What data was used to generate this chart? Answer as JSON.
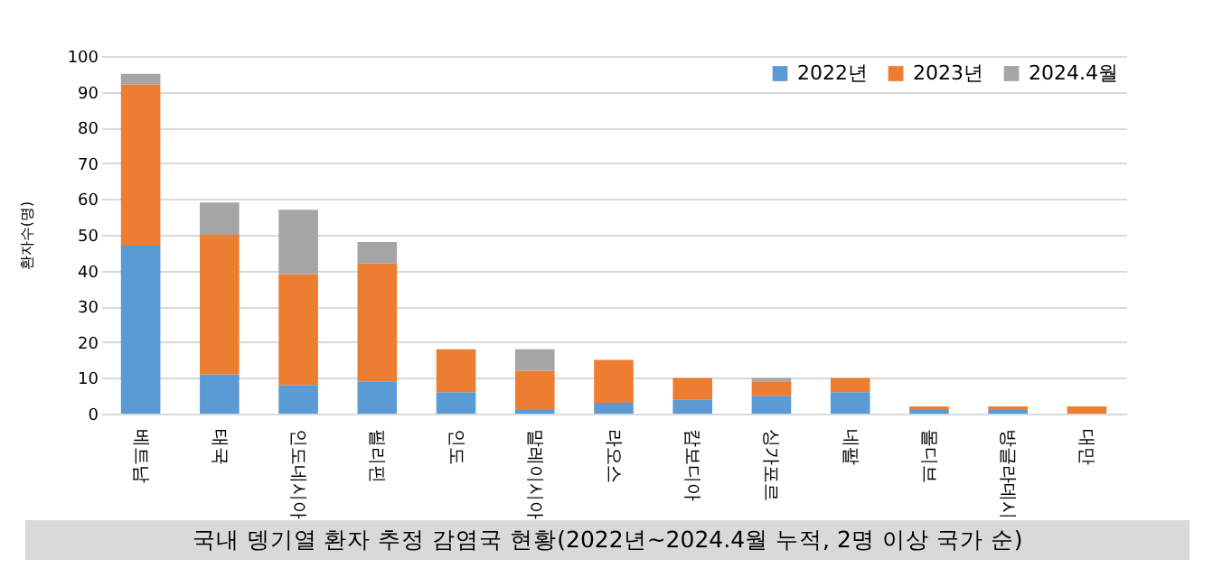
{
  "chart_data": {
    "type": "bar",
    "title": "국내 뎅기열 환자 추정 감염국 현황(2022년~2024.4월 누적, 2명 이상 국가 순)",
    "ylabel": "환자수(명)",
    "stacked": true,
    "categories": [
      "베트남",
      "태국",
      "인도네시아",
      "필리핀",
      "인도",
      "말레이시아",
      "라오스",
      "캄보디아",
      "싱가포르",
      "네팔",
      "몰디브",
      "방글라데시",
      "대만"
    ],
    "series": [
      {
        "name": "2022년",
        "color": "#5b9bd5",
        "values": [
          47,
          11,
          8,
          9,
          6,
          1,
          3,
          4,
          5,
          6,
          1,
          1,
          0
        ]
      },
      {
        "name": "2023년",
        "color": "#ed7d31",
        "values": [
          45,
          39,
          31,
          33,
          12,
          11,
          12,
          6,
          4,
          4,
          1,
          1,
          2
        ]
      },
      {
        "name": "2024.4월",
        "color": "#a5a5a5",
        "values": [
          3,
          9,
          18,
          6,
          0,
          6,
          0,
          0,
          1,
          0,
          0,
          0,
          0
        ]
      }
    ],
    "ylim": [
      0,
      100
    ],
    "yticks": [
      0,
      10,
      20,
      30,
      40,
      50,
      60,
      70,
      80,
      90,
      100
    ],
    "grid": "y",
    "legend": "top right"
  }
}
